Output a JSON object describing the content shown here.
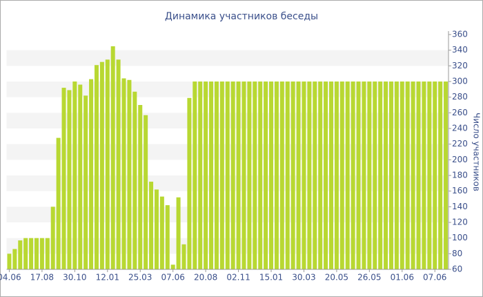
{
  "chart_data": {
    "type": "bar",
    "title": "Динамика участников беседы",
    "y_label": "Число участников",
    "color": "#b8d832",
    "categories": [
      "04.06",
      null,
      null,
      null,
      null,
      null,
      "17.08",
      null,
      null,
      null,
      null,
      null,
      "30.10",
      null,
      null,
      null,
      null,
      null,
      "12.01",
      null,
      null,
      null,
      null,
      null,
      "25.03",
      null,
      null,
      null,
      null,
      null,
      "07.06",
      null,
      null,
      null,
      null,
      null,
      "20.08",
      null,
      null,
      null,
      null,
      null,
      "02.11",
      null,
      null,
      null,
      null,
      null,
      "15.01",
      null,
      null,
      null,
      null,
      null,
      "30.03",
      null,
      null,
      null,
      null,
      null,
      "20.05",
      null,
      null,
      null,
      null,
      null,
      "26.05",
      null,
      null,
      null,
      null,
      null,
      "01.06",
      null,
      null,
      null,
      null,
      null,
      "07.06",
      null,
      null
    ],
    "values": [
      80,
      86,
      97,
      100,
      100,
      100,
      100,
      100,
      140,
      228,
      292,
      289,
      300,
      296,
      282,
      303,
      321,
      325,
      328,
      345,
      328,
      304,
      302,
      287,
      270,
      257,
      172,
      162,
      153,
      142,
      66,
      152,
      92,
      279,
      300,
      300,
      300,
      300,
      300,
      300,
      300,
      300,
      300,
      300,
      300,
      300,
      300,
      300,
      300,
      300,
      300,
      300,
      300,
      300,
      300,
      300,
      300,
      300,
      300,
      300,
      300,
      300,
      300,
      300,
      300,
      300,
      300,
      300,
      300,
      300,
      300,
      300,
      300,
      300,
      300,
      300,
      300,
      300,
      300,
      300,
      300
    ],
    "ylim": [
      60,
      360
    ],
    "yticks": [
      60,
      80,
      100,
      120,
      140,
      160,
      180,
      200,
      220,
      240,
      260,
      280,
      300,
      320,
      340,
      360
    ],
    "grid": true
  }
}
